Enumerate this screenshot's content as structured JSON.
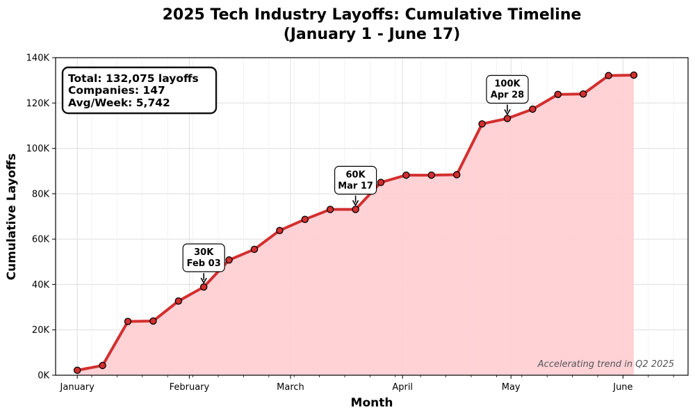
{
  "chart_data": {
    "type": "line",
    "title_line1": "2025 Tech Industry Layoffs: Cumulative Timeline",
    "title_line2": "(January 1 - June 17)",
    "xlabel": "Month",
    "ylabel": "Cumulative Layoffs",
    "xlim": [
      "2024-12-26",
      "2025-06-19"
    ],
    "ylim": [
      0,
      140000
    ],
    "yticks": [
      {
        "value": 0,
        "label": "0K"
      },
      {
        "value": 20000,
        "label": "20K"
      },
      {
        "value": 40000,
        "label": "40K"
      },
      {
        "value": 60000,
        "label": "60K"
      },
      {
        "value": 80000,
        "label": "80K"
      },
      {
        "value": 100000,
        "label": "100K"
      },
      {
        "value": 120000,
        "label": "120K"
      },
      {
        "value": 140000,
        "label": "140K"
      }
    ],
    "xticks": [
      {
        "date": "2025-01-01",
        "label": "January"
      },
      {
        "date": "2025-02-01",
        "label": "February"
      },
      {
        "date": "2025-03-01",
        "label": "March"
      },
      {
        "date": "2025-04-01",
        "label": "April"
      },
      {
        "date": "2025-05-01",
        "label": "May"
      },
      {
        "date": "2025-06-01",
        "label": "June"
      }
    ],
    "grid": true,
    "series": [
      {
        "points": [
          {
            "x": "2025-01-01",
            "y": 2200
          },
          {
            "x": "2025-01-08",
            "y": 4300
          },
          {
            "x": "2025-01-15",
            "y": 23700
          },
          {
            "x": "2025-01-22",
            "y": 23900
          },
          {
            "x": "2025-01-29",
            "y": 32700
          },
          {
            "x": "2025-02-05",
            "y": 38900
          },
          {
            "x": "2025-02-12",
            "y": 50800
          },
          {
            "x": "2025-02-19",
            "y": 55500
          },
          {
            "x": "2025-02-26",
            "y": 63800
          },
          {
            "x": "2025-03-05",
            "y": 68700
          },
          {
            "x": "2025-03-12",
            "y": 73100
          },
          {
            "x": "2025-03-19",
            "y": 73100
          },
          {
            "x": "2025-03-26",
            "y": 85000
          },
          {
            "x": "2025-04-02",
            "y": 88200
          },
          {
            "x": "2025-04-09",
            "y": 88200
          },
          {
            "x": "2025-04-16",
            "y": 88400
          },
          {
            "x": "2025-04-23",
            "y": 110800
          },
          {
            "x": "2025-04-30",
            "y": 113200
          },
          {
            "x": "2025-05-07",
            "y": 117300
          },
          {
            "x": "2025-05-14",
            "y": 123800
          },
          {
            "x": "2025-05-21",
            "y": 124000
          },
          {
            "x": "2025-05-28",
            "y": 132100
          },
          {
            "x": "2025-06-04",
            "y": 132300
          }
        ]
      }
    ],
    "annotations": [
      {
        "line1": "30K",
        "line2": "Feb 03",
        "x": "2025-02-05",
        "y": 38900
      },
      {
        "line1": "60K",
        "line2": "Mar 17",
        "x": "2025-03-19",
        "y": 73100
      },
      {
        "line1": "100K",
        "line2": "Apr 28",
        "x": "2025-04-30",
        "y": 113200
      }
    ],
    "stats_box": {
      "line1": "Total: 132,075 layoffs",
      "line2": "Companies: 147",
      "line3": "Avg/Week: 5,742"
    },
    "trend_note": "Accelerating trend in Q2 2025",
    "colors": {
      "line": "#d32f2f",
      "marker_fill": "#d32f2f",
      "marker_edge": "#000000",
      "area": "#ffcdd2",
      "grid": "#dddddd"
    }
  }
}
